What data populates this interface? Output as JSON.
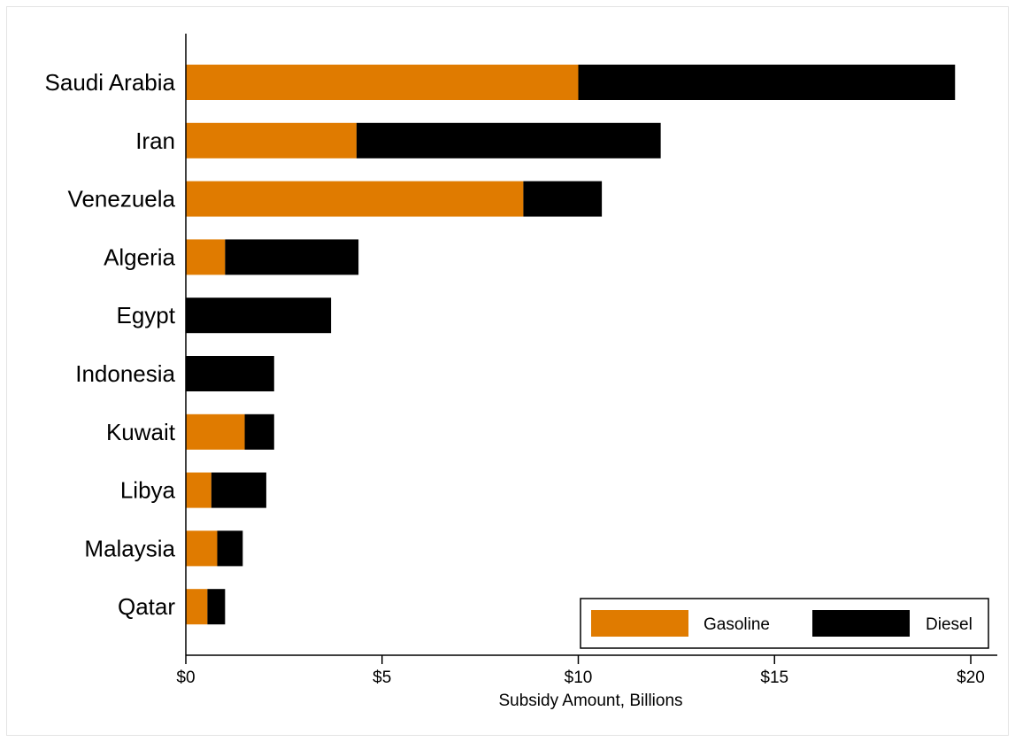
{
  "chart_data": {
    "type": "bar",
    "orientation": "horizontal",
    "stacked": true,
    "categories": [
      "Saudi Arabia",
      "Iran",
      "Venezuela",
      "Algeria",
      "Egypt",
      "Indonesia",
      "Kuwait",
      "Libya",
      "Malaysia",
      "Qatar"
    ],
    "series": [
      {
        "name": "Gasoline",
        "color": "#e07b00",
        "values": [
          10.0,
          4.35,
          8.6,
          1.0,
          0.0,
          0.0,
          1.5,
          0.65,
          0.8,
          0.55
        ]
      },
      {
        "name": "Diesel",
        "color": "#000000",
        "values": [
          9.6,
          7.75,
          2.0,
          3.4,
          3.7,
          2.25,
          0.75,
          1.4,
          0.65,
          0.45
        ]
      }
    ],
    "xlabel": "Subsidy Amount, Billions",
    "ylabel": "",
    "xlim": [
      0,
      20
    ],
    "xticks": [
      0,
      5,
      10,
      15,
      20
    ],
    "xtick_labels": [
      "$0",
      "$5",
      "$10",
      "$15",
      "$20"
    ],
    "grid": false,
    "legend_position": "bottom-right"
  }
}
